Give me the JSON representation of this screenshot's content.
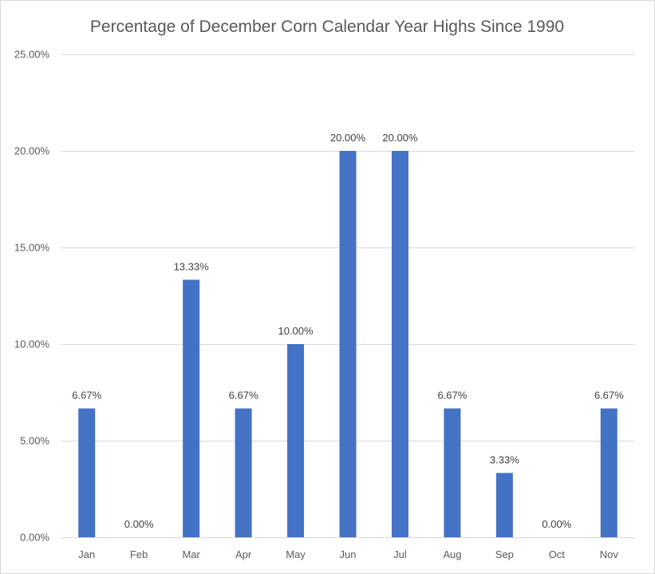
{
  "chart_data": {
    "type": "bar",
    "title": "Percentage of December Corn Calendar Year Highs Since 1990",
    "xlabel": "",
    "ylabel": "",
    "categories": [
      "Jan",
      "Feb",
      "Mar",
      "Apr",
      "May",
      "Jun",
      "Jul",
      "Aug",
      "Sep",
      "Oct",
      "Nov"
    ],
    "values": [
      6.67,
      0.0,
      13.33,
      6.67,
      10.0,
      20.0,
      20.0,
      6.67,
      3.33,
      0.0,
      6.67
    ],
    "data_labels": [
      "6.67%",
      "0.00%",
      "13.33%",
      "6.67%",
      "10.00%",
      "20.00%",
      "20.00%",
      "6.67%",
      "3.33%",
      "0.00%",
      "6.67%"
    ],
    "y_ticks": [
      0,
      5,
      10,
      15,
      20,
      25
    ],
    "y_tick_labels": [
      "0.00%",
      "5.00%",
      "10.00%",
      "15.00%",
      "20.00%",
      "25.00%"
    ],
    "ylim": [
      0,
      25
    ],
    "grid": true,
    "legend": "none",
    "bar_color": "#4472C4"
  }
}
